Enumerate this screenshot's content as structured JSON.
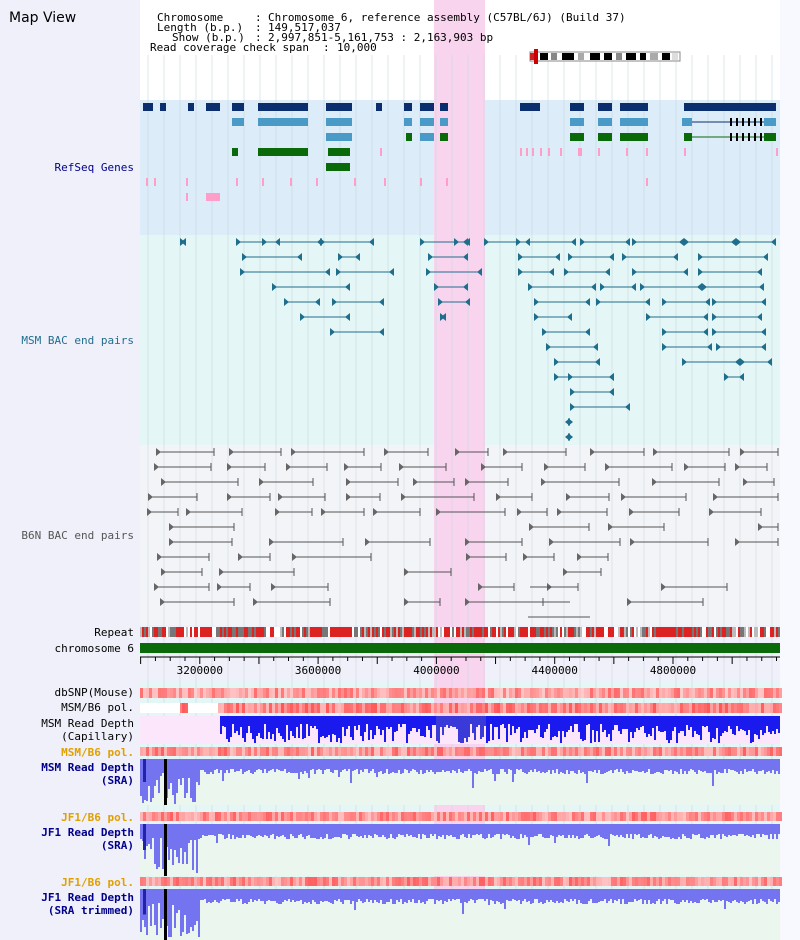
{
  "header": {
    "title": "Map View",
    "chromosome_label": "Chromosome",
    "chromosome_value": "Chromosome 6, reference assembly (C57BL/6J) (Build 37)",
    "length_label": "Length (b.p.)",
    "length_value": "149,517,037",
    "show_label": "Show (b.p.)",
    "show_value": "2,997,851-5,161,753 : 2,163,903 bp",
    "coverage_label": "Read coverage check span",
    "coverage_value": "10,000"
  },
  "tracks": {
    "refseq": "RefSeq Genes",
    "msm_bac": "MSM BAC end pairs",
    "b6n_bac": "B6N BAC end pairs",
    "repeat": "Repeat",
    "chromosome": "chromosome 6",
    "dbsnp": "dbSNP(Mouse)",
    "msm_b6_pol_1": "MSM/B6 pol.",
    "msm_depth_cap_1": "MSM Read Depth",
    "msm_depth_cap_2": "(Capillary)",
    "msm_b6_pol_2": "MSM/B6 pol.",
    "msm_depth_sra_1": "MSM Read Depth",
    "msm_depth_sra_2": "(SRA)",
    "jf1_b6_pol_1": "JF1/B6 pol.",
    "jf1_depth_sra_1": "JF1 Read Depth",
    "jf1_depth_sra_2": "(SRA)",
    "jf1_b6_pol_2": "JF1/B6 pol.",
    "jf1_depth_trim_1": "JF1 Read Depth",
    "jf1_depth_trim_2": "(SRA trimmed)"
  },
  "axis": {
    "ticks": [
      "3200000",
      "3600000",
      "4000000",
      "4400000",
      "4800000"
    ],
    "range": [
      2997851,
      5161753
    ]
  },
  "colors": {
    "refseq_bg": "#dcecf8",
    "msm_bg": "#e4f6f6",
    "highlight": "#f8d4ee",
    "gene_dark": "#0b2e6e",
    "gene_mid": "#4a9ac8",
    "gene_green": "#0a6a0a",
    "msm_line": "#1f6e8c",
    "b6n_line": "#666666",
    "chrom_bar": "#0a6a0a",
    "label_navy": "#00008b",
    "label_teal": "#1f6e8c",
    "label_orange": "#e0a000"
  }
}
